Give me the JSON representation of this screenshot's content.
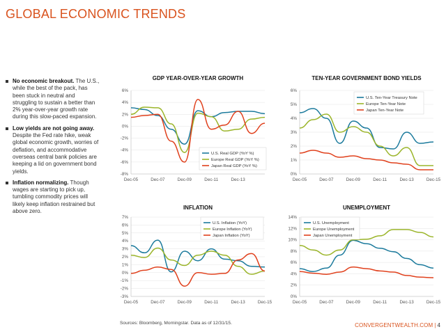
{
  "page": {
    "title": "GLOBAL ECONOMIC TRENDS",
    "footer_note": "Sources: Bloomberg, Morningstar. Data as of 12/31/15.",
    "brand": "CONVERGENTWEALTH.COM",
    "separator": "|",
    "page_number": "4"
  },
  "sidebar": {
    "items": [
      {
        "heading": "No economic breakout.",
        "text": " The U.S., while the best of the pack, has been stuck in neutral and struggling to sustain a better than 2% year-over-year growth rate during this slow-paced expansion."
      },
      {
        "heading": "Low yields are not going away.",
        "text": " Despite the Fed rate hike, weak global economic growth, worries of deflation, and accommodative overseas central bank policies are keeping a lid on government bond yields."
      },
      {
        "heading": "Inflation normalizing.",
        "text": " Though wages are starting to pick up, tumbling commodity prices will likely keep inflation restrained but above zero."
      }
    ]
  },
  "colors": {
    "teal": "#1b7a9c",
    "green": "#9bb52a",
    "red": "#e0401c",
    "title_orange": "#d9531e"
  },
  "chart_data": [
    {
      "type": "line",
      "title": "GDP YEAR-OVER-YEAR GROWTH",
      "x": [
        "Dec-05",
        "Dec-06",
        "Dec-07",
        "Dec-08",
        "Dec-09",
        "Dec-10",
        "Dec-11",
        "Dec-12",
        "Dec-13",
        "Dec-14",
        "Dec-15"
      ],
      "x_ticks": [
        "Dec-05",
        "Dec-07",
        "Dec-09",
        "Dec-11",
        "Dec-13"
      ],
      "y_ticks": [
        "6%",
        "4%",
        "2%",
        "0%",
        "-2%",
        "-4%",
        "-6%",
        "-8%"
      ],
      "ylim": [
        -8,
        6
      ],
      "legend_position": "bottom-right",
      "series": [
        {
          "name": "U.S. Real GDP (YoY %)",
          "color": "teal",
          "values": [
            3.1,
            2.8,
            1.8,
            -0.5,
            -3.0,
            2.6,
            1.6,
            2.3,
            2.5,
            2.5,
            2.1
          ]
        },
        {
          "name": "Europe Real GDP (YoY %)",
          "color": "green",
          "values": [
            2.0,
            3.2,
            3.1,
            0.4,
            -4.4,
            2.2,
            1.6,
            -0.8,
            -0.5,
            1.2,
            1.5
          ]
        },
        {
          "name": "Japan Real GDP (YoY %)",
          "color": "red",
          "values": [
            1.5,
            1.8,
            2.0,
            -2.5,
            -6.0,
            4.5,
            -0.5,
            0.2,
            2.5,
            -1.2,
            0.5
          ]
        }
      ]
    },
    {
      "type": "line",
      "title": "TEN-YEAR GOVERNMENT BOND YIELDS",
      "x": [
        "Dec-05",
        "Dec-06",
        "Dec-07",
        "Dec-08",
        "Dec-09",
        "Dec-10",
        "Dec-11",
        "Dec-12",
        "Dec-13",
        "Dec-14",
        "Dec-15"
      ],
      "x_ticks": [
        "Dec-05",
        "Dec-07",
        "Dec-09",
        "Dec-11",
        "Dec-13",
        "Dec-15"
      ],
      "y_ticks": [
        "6%",
        "5%",
        "4%",
        "3%",
        "2%",
        "1%",
        "0%"
      ],
      "ylim": [
        0,
        6
      ],
      "legend_position": "top-left",
      "series": [
        {
          "name": "U.S. Ten-Year Treasury Note",
          "color": "teal",
          "values": [
            4.4,
            4.7,
            4.0,
            2.2,
            3.8,
            3.3,
            1.9,
            1.8,
            3.0,
            2.2,
            2.3
          ]
        },
        {
          "name": "Europe Ten-Year Note",
          "color": "green",
          "values": [
            3.3,
            3.9,
            4.3,
            3.0,
            3.4,
            3.0,
            2.0,
            1.3,
            1.9,
            0.6,
            0.6
          ]
        },
        {
          "name": "Japan Ten-Year Note",
          "color": "red",
          "values": [
            1.5,
            1.7,
            1.5,
            1.2,
            1.3,
            1.1,
            1.0,
            0.8,
            0.7,
            0.3,
            0.3
          ]
        }
      ]
    },
    {
      "type": "line",
      "title": "INFLATION",
      "x": [
        "Dec-05",
        "Dec-06",
        "Dec-07",
        "Dec-08",
        "Dec-09",
        "Dec-10",
        "Dec-11",
        "Dec-12",
        "Dec-13",
        "Dec-14",
        "Dec-15"
      ],
      "x_ticks": [
        "Dec-05",
        "Dec-07",
        "Dec-09",
        "Dec-11",
        "Dec-13",
        "Dec-15"
      ],
      "y_ticks": [
        "7%",
        "6%",
        "5%",
        "4%",
        "3%",
        "2%",
        "1%",
        "0%",
        "-1%",
        "-2%",
        "-3%"
      ],
      "ylim": [
        -3,
        7
      ],
      "legend_position": "top-right",
      "series": [
        {
          "name": "U.S. Inflation (YoY)",
          "color": "teal",
          "values": [
            3.4,
            2.5,
            4.1,
            0.1,
            2.7,
            1.5,
            3.0,
            1.7,
            1.5,
            0.8,
            0.7
          ]
        },
        {
          "name": "Europe Inflation (YoY)",
          "color": "green",
          "values": [
            2.2,
            1.9,
            3.1,
            1.6,
            0.9,
            2.2,
            2.7,
            2.2,
            0.8,
            -0.2,
            0.2
          ]
        },
        {
          "name": "Japan Inflation (YoY)",
          "color": "red",
          "values": [
            -0.1,
            0.3,
            0.7,
            0.4,
            -1.7,
            0.0,
            -0.2,
            -0.1,
            1.6,
            2.4,
            0.2
          ]
        }
      ]
    },
    {
      "type": "line",
      "title": "UNEMPLOYMENT",
      "x": [
        "Dec-05",
        "Dec-06",
        "Dec-07",
        "Dec-08",
        "Dec-09",
        "Dec-10",
        "Dec-11",
        "Dec-12",
        "Dec-13",
        "Dec-14",
        "Dec-15"
      ],
      "x_ticks": [
        "Dec-05",
        "Dec-07",
        "Dec-09",
        "Dec-11",
        "Dec-13",
        "Dec-15"
      ],
      "y_ticks": [
        "14%",
        "12%",
        "10%",
        "8%",
        "6%",
        "4%",
        "2%",
        "0%"
      ],
      "ylim": [
        0,
        14
      ],
      "legend_position": "top-left",
      "series": [
        {
          "name": "U.S. Unemployment",
          "color": "teal",
          "values": [
            4.9,
            4.4,
            5.0,
            7.3,
            9.9,
            9.3,
            8.5,
            7.9,
            6.7,
            5.6,
            5.0
          ]
        },
        {
          "name": "Europe Unemployment",
          "color": "green",
          "values": [
            9.0,
            8.2,
            7.3,
            8.2,
            10.0,
            10.1,
            10.7,
            11.8,
            11.8,
            11.3,
            10.5
          ]
        },
        {
          "name": "Japan Unemployment",
          "color": "red",
          "values": [
            4.4,
            4.1,
            3.9,
            4.3,
            5.2,
            4.9,
            4.5,
            4.3,
            3.7,
            3.4,
            3.3
          ]
        }
      ]
    }
  ]
}
